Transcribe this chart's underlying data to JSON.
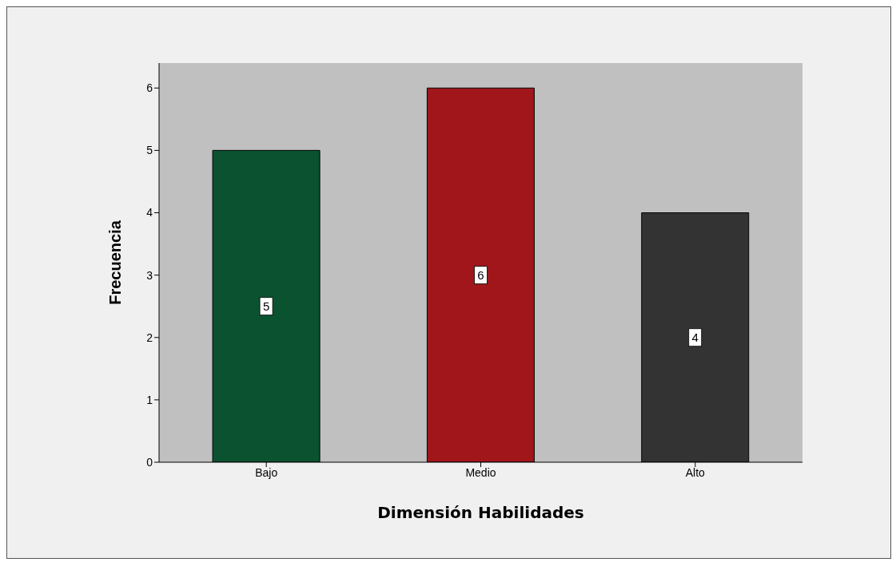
{
  "chart_data": {
    "type": "bar",
    "xlabel": "Dimensión Habilidades",
    "ylabel": "Frecuencia",
    "categories": [
      "Bajo",
      "Medio",
      "Alto"
    ],
    "values": [
      5,
      6,
      4
    ],
    "colors": [
      "#0b5230",
      "#a0161b",
      "#333333"
    ],
    "ylim": [
      0,
      6.4
    ],
    "yticks": [
      0,
      1,
      2,
      3,
      4,
      5,
      6
    ],
    "grid": false,
    "data_labels": true
  }
}
